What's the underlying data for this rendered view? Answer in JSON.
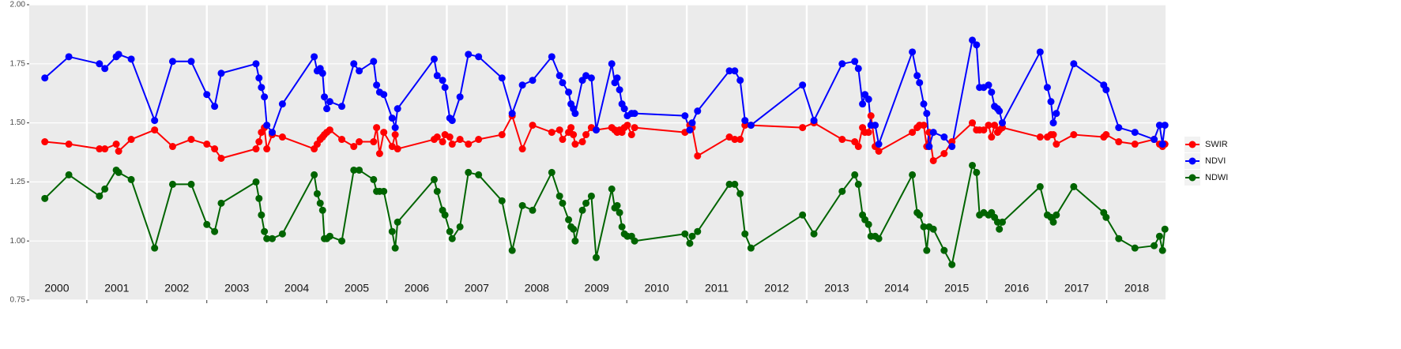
{
  "chart_data": {
    "type": "line",
    "x": [
      2000.3,
      2000.7,
      2001.21,
      2001.3,
      2001.49,
      2001.53,
      2001.74,
      2002.13,
      2002.43,
      2002.74,
      2003.0,
      2003.13,
      2003.24,
      2003.82,
      2003.87,
      2003.91,
      2003.96,
      2004.0,
      2004.09,
      2004.26,
      2004.79,
      2004.84,
      2004.89,
      2004.93,
      2004.96,
      2005.0,
      2005.05,
      2005.25,
      2005.45,
      2005.54,
      2005.78,
      2005.83,
      2005.88,
      2005.95,
      2006.09,
      2006.14,
      2006.18,
      2006.79,
      2006.84,
      2006.93,
      2006.97,
      2007.05,
      2007.09,
      2007.22,
      2007.36,
      2007.53,
      2007.92,
      2008.09,
      2008.26,
      2008.43,
      2008.75,
      2008.88,
      2008.93,
      2009.03,
      2009.07,
      2009.11,
      2009.14,
      2009.26,
      2009.32,
      2009.41,
      2009.49,
      2009.75,
      2009.8,
      2009.84,
      2009.88,
      2009.92,
      2009.96,
      2010.01,
      2010.08,
      2010.13,
      2010.97,
      2011.05,
      2011.09,
      2011.18,
      2011.71,
      2011.8,
      2011.89,
      2011.97,
      2012.07,
      2012.93,
      2013.12,
      2013.59,
      2013.8,
      2013.86,
      2013.93,
      2013.97,
      2014.03,
      2014.07,
      2014.14,
      2014.2,
      2014.76,
      2014.84,
      2014.88,
      2014.95,
      2015.0,
      2015.04,
      2015.11,
      2015.29,
      2015.42,
      2015.76,
      2015.83,
      2015.88,
      2015.95,
      2016.03,
      2016.08,
      2016.13,
      2016.18,
      2016.21,
      2016.26,
      2016.89,
      2017.01,
      2017.07,
      2017.11,
      2017.16,
      2017.45,
      2017.95,
      2017.99,
      2018.2,
      2018.47,
      2018.79,
      2018.88,
      2018.93,
      2018.97
    ],
    "series": [
      {
        "name": "SWIR",
        "color": "#ff0000",
        "values": [
          1.42,
          1.41,
          1.39,
          1.39,
          1.41,
          1.38,
          1.43,
          1.47,
          1.4,
          1.43,
          1.41,
          1.39,
          1.35,
          1.39,
          1.42,
          1.46,
          1.48,
          1.39,
          1.45,
          1.44,
          1.39,
          1.41,
          1.43,
          1.44,
          1.45,
          1.46,
          1.47,
          1.43,
          1.4,
          1.42,
          1.42,
          1.48,
          1.37,
          1.46,
          1.4,
          1.45,
          1.39,
          1.43,
          1.44,
          1.42,
          1.45,
          1.44,
          1.41,
          1.43,
          1.41,
          1.43,
          1.45,
          1.53,
          1.39,
          1.49,
          1.46,
          1.47,
          1.43,
          1.46,
          1.48,
          1.45,
          1.41,
          1.42,
          1.45,
          1.48,
          1.47,
          1.48,
          1.47,
          1.46,
          1.47,
          1.46,
          1.48,
          1.49,
          1.45,
          1.48,
          1.46,
          1.49,
          1.48,
          1.36,
          1.44,
          1.43,
          1.43,
          1.49,
          1.49,
          1.48,
          1.5,
          1.43,
          1.42,
          1.4,
          1.48,
          1.46,
          1.46,
          1.53,
          1.4,
          1.38,
          1.46,
          1.48,
          1.49,
          1.49,
          1.4,
          1.46,
          1.34,
          1.37,
          1.42,
          1.5,
          1.47,
          1.47,
          1.47,
          1.49,
          1.44,
          1.49,
          1.46,
          1.47,
          1.48,
          1.44,
          1.44,
          1.45,
          1.45,
          1.41,
          1.45,
          1.44,
          1.45,
          1.42,
          1.41,
          1.43,
          1.41,
          1.4,
          1.41
        ]
      },
      {
        "name": "NDVI",
        "color": "#0000ff",
        "values": [
          1.69,
          1.78,
          1.75,
          1.73,
          1.78,
          1.79,
          1.77,
          1.51,
          1.76,
          1.76,
          1.62,
          1.57,
          1.71,
          1.75,
          1.69,
          1.65,
          1.61,
          1.49,
          1.46,
          1.58,
          1.78,
          1.72,
          1.73,
          1.71,
          1.61,
          1.56,
          1.59,
          1.57,
          1.75,
          1.72,
          1.76,
          1.66,
          1.63,
          1.62,
          1.52,
          1.48,
          1.56,
          1.77,
          1.7,
          1.68,
          1.65,
          1.52,
          1.51,
          1.61,
          1.79,
          1.78,
          1.69,
          1.54,
          1.66,
          1.68,
          1.78,
          1.7,
          1.67,
          1.63,
          1.58,
          1.56,
          1.54,
          1.68,
          1.7,
          1.69,
          1.47,
          1.75,
          1.67,
          1.69,
          1.64,
          1.58,
          1.56,
          1.53,
          1.54,
          1.54,
          1.53,
          1.47,
          1.5,
          1.55,
          1.72,
          1.72,
          1.68,
          1.51,
          1.49,
          1.66,
          1.51,
          1.75,
          1.76,
          1.73,
          1.58,
          1.62,
          1.6,
          1.49,
          1.49,
          1.41,
          1.8,
          1.7,
          1.67,
          1.58,
          1.54,
          1.4,
          1.46,
          1.44,
          1.4,
          1.85,
          1.83,
          1.65,
          1.65,
          1.66,
          1.63,
          1.57,
          1.56,
          1.55,
          1.5,
          1.8,
          1.65,
          1.59,
          1.5,
          1.54,
          1.75,
          1.66,
          1.64,
          1.48,
          1.46,
          1.43,
          1.49,
          1.41,
          1.49
        ]
      },
      {
        "name": "NDWI",
        "color": "#006400",
        "values": [
          1.18,
          1.28,
          1.19,
          1.22,
          1.3,
          1.29,
          1.26,
          0.97,
          1.24,
          1.24,
          1.07,
          1.04,
          1.16,
          1.25,
          1.18,
          1.11,
          1.04,
          1.01,
          1.01,
          1.03,
          1.28,
          1.2,
          1.16,
          1.13,
          1.01,
          1.01,
          1.02,
          1.0,
          1.3,
          1.3,
          1.26,
          1.21,
          1.21,
          1.21,
          1.04,
          0.97,
          1.08,
          1.26,
          1.21,
          1.13,
          1.11,
          1.04,
          1.01,
          1.06,
          1.29,
          1.28,
          1.17,
          0.96,
          1.15,
          1.13,
          1.29,
          1.19,
          1.16,
          1.09,
          1.06,
          1.05,
          1.0,
          1.13,
          1.16,
          1.19,
          0.93,
          1.22,
          1.14,
          1.15,
          1.12,
          1.06,
          1.03,
          1.02,
          1.02,
          1.0,
          1.03,
          0.99,
          1.02,
          1.04,
          1.24,
          1.24,
          1.2,
          1.03,
          0.97,
          1.11,
          1.03,
          1.21,
          1.28,
          1.24,
          1.11,
          1.09,
          1.07,
          1.02,
          1.02,
          1.01,
          1.28,
          1.12,
          1.11,
          1.06,
          0.96,
          1.06,
          1.05,
          0.96,
          0.9,
          1.32,
          1.29,
          1.11,
          1.12,
          1.11,
          1.12,
          1.1,
          1.08,
          1.05,
          1.08,
          1.23,
          1.11,
          1.1,
          1.08,
          1.11,
          1.23,
          1.12,
          1.1,
          1.01,
          0.97,
          0.98,
          1.02,
          0.96,
          1.05
        ]
      }
    ],
    "xlim": [
      2000.04,
      2018.98
    ],
    "xticks": [
      {
        "value": 2000,
        "label": "2000"
      },
      {
        "value": 2001,
        "label": "2001"
      },
      {
        "value": 2002,
        "label": "2002"
      },
      {
        "value": 2003,
        "label": "2003"
      },
      {
        "value": 2004,
        "label": "2004"
      },
      {
        "value": 2005,
        "label": "2005"
      },
      {
        "value": 2006,
        "label": "2006"
      },
      {
        "value": 2007,
        "label": "2007"
      },
      {
        "value": 2008,
        "label": "2008"
      },
      {
        "value": 2009,
        "label": "2009"
      },
      {
        "value": 2010,
        "label": "2010"
      },
      {
        "value": 2011,
        "label": "2011"
      },
      {
        "value": 2012,
        "label": "2012"
      },
      {
        "value": 2013,
        "label": "2013"
      },
      {
        "value": 2014,
        "label": "2014"
      },
      {
        "value": 2015,
        "label": "2015"
      },
      {
        "value": 2016,
        "label": "2016"
      },
      {
        "value": 2017,
        "label": "2017"
      },
      {
        "value": 2018,
        "label": "2018"
      }
    ],
    "ylim": [
      0.75,
      2.0
    ],
    "yticks": [
      {
        "value": 0.75,
        "label": "0.75"
      },
      {
        "value": 1.0,
        "label": "1.00"
      },
      {
        "value": 1.25,
        "label": "1.25"
      },
      {
        "value": 1.5,
        "label": "1.50"
      },
      {
        "value": 1.75,
        "label": "1.75"
      },
      {
        "value": 2.0,
        "label": "2.00"
      }
    ],
    "grid": true,
    "legend": "right"
  }
}
